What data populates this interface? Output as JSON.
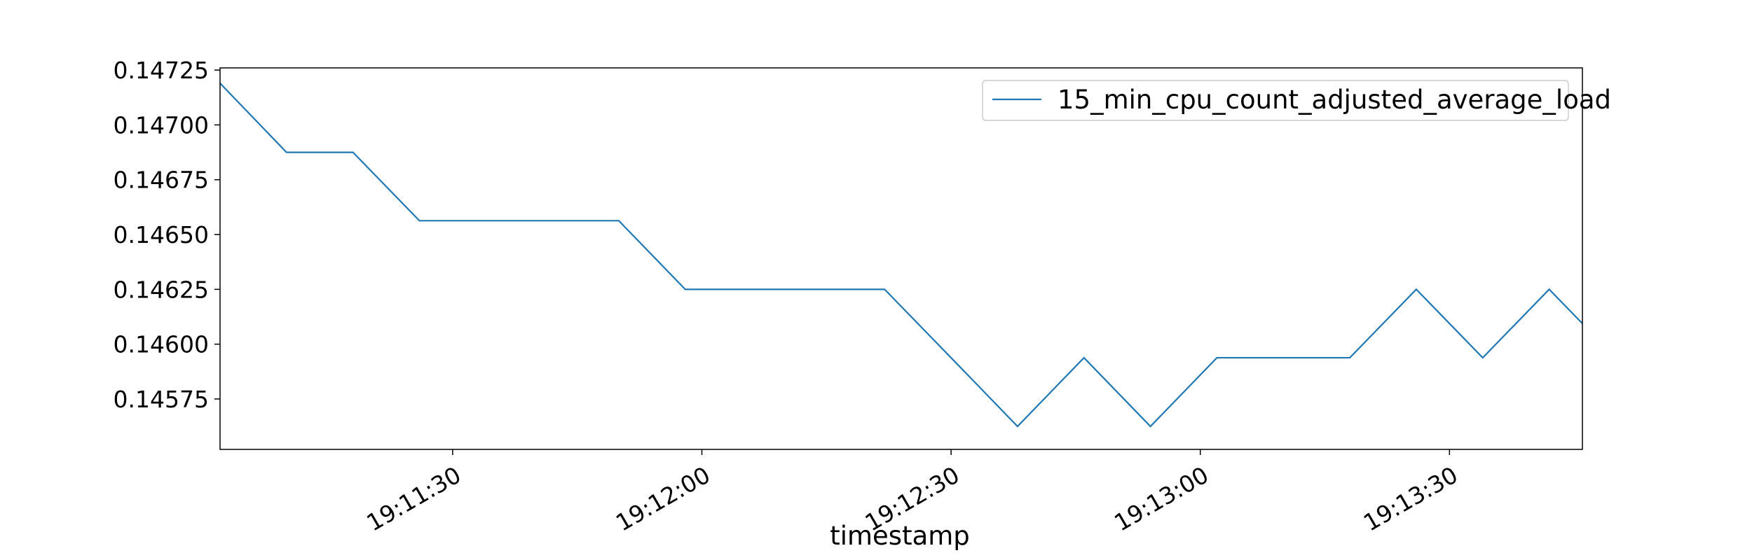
{
  "chart_data": {
    "type": "line",
    "title": "",
    "xlabel": "timestamp",
    "ylabel": "",
    "x_unit": "time (HH:MM:SS)",
    "xlim": [
      "19:11:02",
      "19:13:46"
    ],
    "ylim": [
      0.14552,
      0.14726
    ],
    "y_ticks": [
      0.14575,
      0.146,
      0.14625,
      0.1465,
      0.14675,
      0.147,
      0.14725
    ],
    "y_tick_labels": [
      "0.14575",
      "0.14600",
      "0.14625",
      "0.14650",
      "0.14675",
      "0.14700",
      "0.14725"
    ],
    "x_ticks": [
      "19:11:30",
      "19:12:00",
      "19:12:30",
      "19:13:00",
      "19:13:30"
    ],
    "x_tick_labels": [
      "19:11:30",
      "19:12:00",
      "19:12:30",
      "19:13:00",
      "19:13:30"
    ],
    "grid": false,
    "legend_position": "top-right",
    "series": [
      {
        "name": "15_min_cpu_count_adjusted_average_load",
        "color": "#1f77b4",
        "points": [
          {
            "x": "19:11:02",
            "y": 0.14719
          },
          {
            "x": "19:11:10",
            "y": 0.146875
          },
          {
            "x": "19:11:18",
            "y": 0.146875
          },
          {
            "x": "19:11:26",
            "y": 0.146563
          },
          {
            "x": "19:11:34",
            "y": 0.146563
          },
          {
            "x": "19:11:42",
            "y": 0.146563
          },
          {
            "x": "19:11:50",
            "y": 0.146563
          },
          {
            "x": "19:11:58",
            "y": 0.14625
          },
          {
            "x": "19:12:06",
            "y": 0.14625
          },
          {
            "x": "19:12:14",
            "y": 0.14625
          },
          {
            "x": "19:12:22",
            "y": 0.14625
          },
          {
            "x": "19:12:30",
            "y": 0.145938
          },
          {
            "x": "19:12:38",
            "y": 0.145625
          },
          {
            "x": "19:12:46",
            "y": 0.145938
          },
          {
            "x": "19:12:54",
            "y": 0.145625
          },
          {
            "x": "19:13:02",
            "y": 0.145938
          },
          {
            "x": "19:13:10",
            "y": 0.145938
          },
          {
            "x": "19:13:18",
            "y": 0.145938
          },
          {
            "x": "19:13:26",
            "y": 0.14625
          },
          {
            "x": "19:13:34",
            "y": 0.145938
          },
          {
            "x": "19:13:42",
            "y": 0.14625
          },
          {
            "x": "19:13:50",
            "y": 0.145938
          }
        ]
      }
    ]
  }
}
